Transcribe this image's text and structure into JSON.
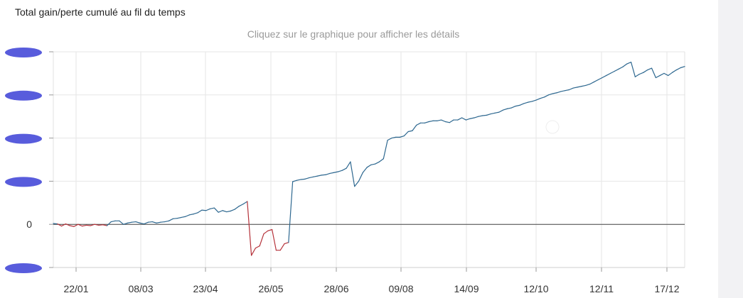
{
  "card": {
    "title": "Total gain/perte cumulé au fil du temps",
    "hint": "Cliquez sur le graphique pour afficher les détails"
  },
  "chart_data": {
    "type": "line",
    "title": "Total gain/perte cumulé au fil du temps",
    "xlabel": "",
    "ylabel": "",
    "x_ticks": [
      "22/01",
      "08/03",
      "23/04",
      "26/05",
      "28/06",
      "09/08",
      "14/09",
      "12/10",
      "12/11",
      "17/12"
    ],
    "y_ticks": [
      "",
      "",
      "",
      "",
      "0",
      ""
    ],
    "y_ticks_note": "y tick labels other than 0 are redacted (blurred) in the source",
    "ylim": [
      -1,
      4
    ],
    "grid": true,
    "colors": {
      "positive": "#2e6890",
      "negative": "#b5323a",
      "zero_line": "#444444",
      "grid": "#e6e6e6"
    },
    "series": [
      {
        "values": [
          0.02,
          0.01,
          -0.04,
          0.01,
          -0.03,
          -0.05,
          0.0,
          -0.04,
          -0.02,
          -0.03,
          0.0,
          -0.02,
          -0.01,
          -0.03,
          0.06,
          0.08,
          0.08,
          0.0,
          0.03,
          0.05,
          0.06,
          0.03,
          0.01,
          0.05,
          0.06,
          0.03,
          0.05,
          0.06,
          0.08,
          0.13,
          0.14,
          0.16,
          0.18,
          0.22,
          0.24,
          0.27,
          0.33,
          0.32,
          0.36,
          0.38,
          0.28,
          0.32,
          0.29,
          0.31,
          0.35,
          0.42,
          0.47,
          0.53,
          -0.72,
          -0.55,
          -0.5,
          -0.22,
          -0.15,
          -0.12,
          -0.6,
          -0.6,
          -0.45,
          -0.42,
          0.99,
          1.02,
          1.04,
          1.05,
          1.08,
          1.1,
          1.12,
          1.14,
          1.15,
          1.18,
          1.2,
          1.22,
          1.25,
          1.3,
          1.45,
          0.88,
          1.0,
          1.2,
          1.32,
          1.38,
          1.4,
          1.45,
          1.52,
          1.95,
          2.0,
          2.02,
          2.02,
          2.05,
          2.15,
          2.17,
          2.3,
          2.35,
          2.35,
          2.38,
          2.4,
          2.4,
          2.42,
          2.38,
          2.36,
          2.42,
          2.42,
          2.47,
          2.42,
          2.45,
          2.47,
          2.5,
          2.52,
          2.53,
          2.56,
          2.58,
          2.6,
          2.65,
          2.68,
          2.7,
          2.74,
          2.76,
          2.8,
          2.83,
          2.85,
          2.88,
          2.92,
          2.95,
          3.0,
          3.03,
          3.05,
          3.08,
          3.1,
          3.12,
          3.16,
          3.18,
          3.2,
          3.22,
          3.25,
          3.3,
          3.35,
          3.4,
          3.45,
          3.5,
          3.55,
          3.6,
          3.65,
          3.72,
          3.76,
          3.42,
          3.48,
          3.52,
          3.58,
          3.62,
          3.4,
          3.45,
          3.5,
          3.45,
          3.52,
          3.58,
          3.63,
          3.66
        ]
      }
    ]
  }
}
